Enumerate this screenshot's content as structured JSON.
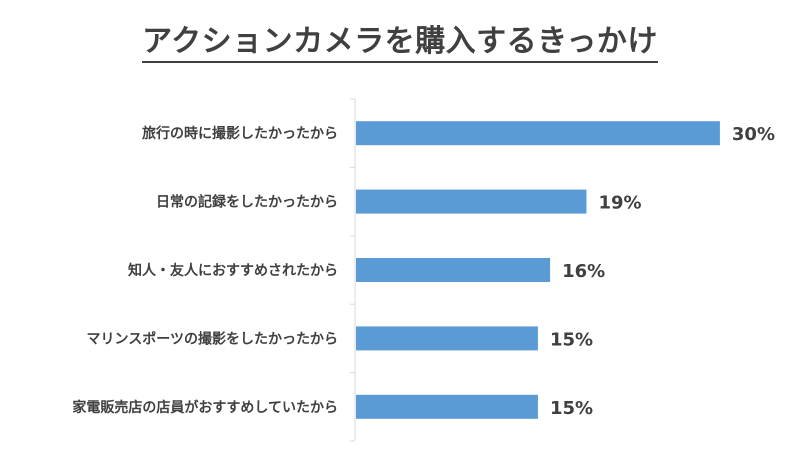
{
  "chart_data": {
    "type": "bar",
    "orientation": "horizontal",
    "title": "アクションカメラを購入するきっかけ",
    "categories": [
      "旅行の時に撮影したかったから",
      "日常の記録をしたかったから",
      "知人・友人におすすめされたから",
      "マリンスポーツの撮影をしたかったから",
      "家電販売店の店員がおすすめしていたから"
    ],
    "values": [
      30,
      19,
      16,
      15,
      15
    ],
    "value_labels": [
      "30%",
      "19%",
      "16%",
      "15%",
      "15%"
    ],
    "unit": "%",
    "xlim": [
      0,
      33
    ],
    "grid": false,
    "legend": "none",
    "bar_color": "#5b9bd5"
  }
}
